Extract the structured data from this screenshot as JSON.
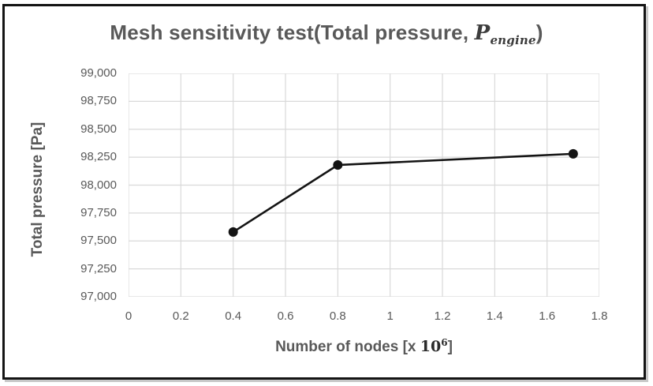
{
  "chart": {
    "title": {
      "main": "Mesh sensitivity test(Total pressure, ",
      "math_symbol": "P",
      "math_subscript": "engine",
      "close_paren": ")"
    },
    "x_axis": {
      "label_main": "Number of nodes [x ",
      "label_base": "10",
      "label_exponent": "6",
      "label_close": "]"
    },
    "y_axis": {
      "label": "Total pressure [Pa]"
    }
  },
  "chart_data": {
    "type": "line",
    "title": "Mesh sensitivity test(Total pressure, P_engine)",
    "xlabel": "Number of nodes [x 10^6]",
    "ylabel": "Total pressure [Pa]",
    "series": [
      {
        "name": "Total pressure",
        "x": [
          0.4,
          0.8,
          1.7
        ],
        "y": [
          97580,
          98180,
          98280
        ]
      }
    ],
    "xlim": [
      0,
      1.8
    ],
    "ylim": [
      97000,
      99000
    ],
    "x_ticks": [
      0,
      0.2,
      0.4,
      0.6,
      0.8,
      1,
      1.2,
      1.4,
      1.6,
      1.8
    ],
    "x_tick_labels": [
      "0",
      "0.2",
      "0.4",
      "0.6",
      "0.8",
      "1",
      "1.2",
      "1.4",
      "1.6",
      "1.8"
    ],
    "y_ticks": [
      97000,
      97250,
      97500,
      97750,
      98000,
      98250,
      98500,
      98750,
      99000
    ],
    "y_tick_labels": [
      "97,000",
      "97,250",
      "97,500",
      "97,750",
      "98,000",
      "98,250",
      "98,500",
      "98,750",
      "99,000"
    ],
    "grid": true,
    "legend_visible": false,
    "line_color": "#141414",
    "marker": "circle",
    "marker_size": 6,
    "line_width": 2.6,
    "gridline_color": "#d9d9d9",
    "text_color": "#595959"
  }
}
